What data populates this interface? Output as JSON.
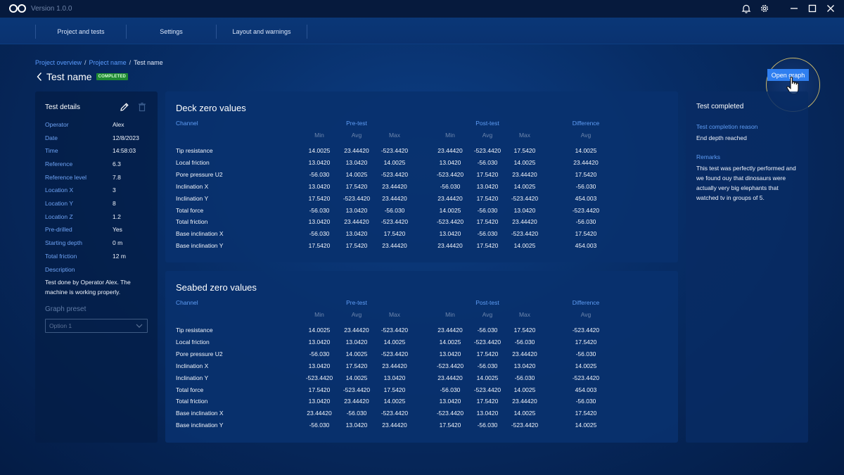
{
  "app": {
    "version": "Version 1.0.0"
  },
  "nav": {
    "tabs": [
      "Project and tests",
      "Settings",
      "Layout and warnings"
    ]
  },
  "breadcrumb": {
    "items": [
      "Project overview",
      "Project name"
    ],
    "current": "Test name",
    "separator": "/"
  },
  "page": {
    "title": "Test name",
    "status": "COMPLETED"
  },
  "open_graph_button": "Open graph",
  "details": {
    "title": "Test details",
    "rows": [
      {
        "label": "Operator",
        "value": "Alex"
      },
      {
        "label": "Date",
        "value": "12/8/2023"
      },
      {
        "label": "Time",
        "value": "14:58:03"
      },
      {
        "label": "Reference",
        "value": "6.3"
      },
      {
        "label": "Reference level",
        "value": "7.8"
      },
      {
        "label": "Location X",
        "value": "3"
      },
      {
        "label": "Location Y",
        "value": "8"
      },
      {
        "label": "Location Z",
        "value": "1.2"
      },
      {
        "label": "Pre-drilled",
        "value": "Yes"
      },
      {
        "label": "Starting depth",
        "value": "0 m"
      },
      {
        "label": "Total friction",
        "value": "12 m"
      }
    ],
    "description_label": "Description",
    "description": "Test done by Operator Alex. The machine is working properly.",
    "graph_preset_label": "Graph preset",
    "graph_preset_value": "Option 1"
  },
  "tables": [
    {
      "title": "Deck zero values",
      "headers": {
        "channel": "Channel",
        "pre": "Pre-test",
        "post": "Post-test",
        "diff": "Difference"
      },
      "subheaders": [
        "Min",
        "Avg",
        "Max",
        "Min",
        "Avg",
        "Max",
        "Avg"
      ],
      "rows": [
        [
          "Tip resistance",
          "14.0025",
          "23.44420",
          "-523.4420",
          "23.44420",
          "-523.4420",
          "17.5420",
          "14.0025"
        ],
        [
          "Local friction",
          "13.0420",
          "13.0420",
          "14.0025",
          "13.0420",
          "-56.030",
          "14.0025",
          "23.44420"
        ],
        [
          "Pore pressure U2",
          "-56.030",
          "14.0025",
          "-523.4420",
          "-523.4420",
          "17.5420",
          "23.44420",
          "17.5420"
        ],
        [
          "Inclination X",
          "13.0420",
          "17.5420",
          "23.44420",
          "-56.030",
          "13.0420",
          "14.0025",
          "-56.030"
        ],
        [
          "Inclination Y",
          "17.5420",
          "-523.4420",
          "23.44420",
          "23.44420",
          "17.5420",
          "-523.4420",
          "454.003"
        ],
        [
          "Total force",
          "-56.030",
          "13.0420",
          "-56.030",
          "14.0025",
          "-56.030",
          "13.0420",
          "-523.4420"
        ],
        [
          "Total friction",
          "13.0420",
          "23.44420",
          "-523.4420",
          "-523.4420",
          "17.5420",
          "23.44420",
          "-56.030"
        ],
        [
          "Base inclination X",
          "-56.030",
          "13.0420",
          "17.5420",
          "13.0420",
          "-56.030",
          "-523.4420",
          "17.5420"
        ],
        [
          "Base inclination Y",
          "17.5420",
          "17.5420",
          "23.44420",
          "23.44420",
          "17.5420",
          "14.0025",
          "454.003"
        ]
      ]
    },
    {
      "title": "Seabed zero values",
      "headers": {
        "channel": "Channel",
        "pre": "Pre-test",
        "post": "Post-test",
        "diff": "Difference"
      },
      "subheaders": [
        "Min",
        "Avg",
        "Max",
        "Min",
        "Avg",
        "Max",
        "Avg"
      ],
      "rows": [
        [
          "Tip resistance",
          "14.0025",
          "23.44420",
          "-523.4420",
          "23.44420",
          "-56.030",
          "17.5420",
          "-523.4420"
        ],
        [
          "Local friction",
          "13.0420",
          "13.0420",
          "14.0025",
          "14.0025",
          "-523.4420",
          "-56.030",
          "17.5420"
        ],
        [
          "Pore pressure U2",
          "-56.030",
          "14.0025",
          "-523.4420",
          "13.0420",
          "17.5420",
          "23.44420",
          "-56.030"
        ],
        [
          "Inclination X",
          "13.0420",
          "17.5420",
          "23.44420",
          "-523.4420",
          "-56.030",
          "13.0420",
          "14.0025"
        ],
        [
          "Inclination Y",
          "-523.4420",
          "14.0025",
          "13.0420",
          "23.44420",
          "14.0025",
          "-56.030",
          "-523.4420"
        ],
        [
          "Total force",
          "17.5420",
          "-523.4420",
          "17.5420",
          "-56.030",
          "-523.4420",
          "14.0025",
          "454.003"
        ],
        [
          "Total friction",
          "13.0420",
          "23.44420",
          "14.0025",
          "13.0420",
          "17.5420",
          "23.44420",
          "-56.030"
        ],
        [
          "Base inclination X",
          "23.44420",
          "-56.030",
          "-523.4420",
          "-523.4420",
          "13.0420",
          "14.0025",
          "17.5420"
        ],
        [
          "Base inclination Y",
          "-56.030",
          "13.0420",
          "23.44420",
          "17.5420",
          "-56.030",
          "-523.4420",
          "14.0025"
        ]
      ]
    }
  ],
  "test_completed": {
    "title": "Test completed",
    "reason_label": "Test completion reason",
    "reason_value": "End depth reached",
    "remarks_label": "Remarks",
    "remarks_value": "This test was perfectly performed and we found ouy that dinosaurs were actually very big elephants that watched tv in groups of 5."
  },
  "colors": {
    "accent": "#2f7ff0",
    "link": "#5b9cff",
    "badge": "#1f8a33",
    "highlight_ring": "#c9b76a"
  },
  "icons": [
    "infinity-logo-icon",
    "bell-icon",
    "gear-icon",
    "minimize-icon",
    "maximize-icon",
    "close-icon",
    "back-icon",
    "edit-icon",
    "trash-icon",
    "chevron-down-icon",
    "hand-cursor-icon"
  ]
}
